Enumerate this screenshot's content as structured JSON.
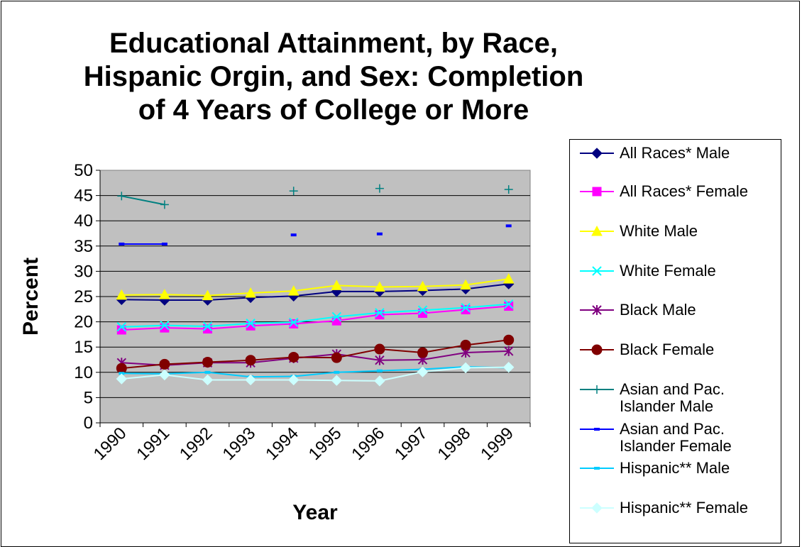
{
  "chart_data": {
    "type": "line",
    "title": "Educational Attainment, by Race, Hispanic Orgin, and Sex: Completion of 4 Years of College or More",
    "xlabel": "Year",
    "ylabel": "Percent",
    "ylim": [
      0,
      50
    ],
    "yticks": [
      "0",
      "5",
      "10",
      "15",
      "20",
      "25",
      "30",
      "35",
      "40",
      "45",
      "50"
    ],
    "categories": [
      "1990",
      "1991",
      "1992",
      "1993",
      "1994",
      "1995",
      "1996",
      "1997",
      "1998",
      "1999"
    ],
    "plot_background": "#c0c0c0",
    "grid": "horizontal",
    "legend_position": "right",
    "series": [
      {
        "name": "All Races* Male",
        "color": "#000080",
        "marker": "diamond",
        "values": [
          24.4,
          24.3,
          24.3,
          24.8,
          25.1,
          26.0,
          26.0,
          26.2,
          26.5,
          27.5
        ]
      },
      {
        "name": "All Races* Female",
        "color": "#ff00ff",
        "marker": "square",
        "values": [
          18.4,
          18.8,
          18.6,
          19.2,
          19.6,
          20.2,
          21.4,
          21.7,
          22.4,
          23.1
        ]
      },
      {
        "name": "White Male",
        "color": "#ffff00",
        "marker": "triangle",
        "values": [
          25.3,
          25.4,
          25.2,
          25.7,
          26.1,
          27.2,
          26.9,
          27.0,
          27.3,
          28.5
        ]
      },
      {
        "name": "White Female",
        "color": "#00ffff",
        "marker": "x",
        "values": [
          19.0,
          19.3,
          19.1,
          19.7,
          19.9,
          21.0,
          21.8,
          22.3,
          22.8,
          23.5
        ]
      },
      {
        "name": "Black Male",
        "color": "#800080",
        "marker": "asterisk",
        "values": [
          11.9,
          11.4,
          11.9,
          11.9,
          12.8,
          13.6,
          12.4,
          12.5,
          13.9,
          14.2
        ]
      },
      {
        "name": "Black Female",
        "color": "#800000",
        "marker": "circle",
        "values": [
          10.8,
          11.6,
          12.0,
          12.4,
          13.0,
          12.9,
          14.6,
          13.9,
          15.4,
          16.4
        ]
      },
      {
        "name": "Asian and Pac. Islander Male",
        "color": "#008080",
        "marker": "plus",
        "values": [
          44.9,
          43.2,
          null,
          null,
          45.9,
          null,
          46.4,
          null,
          null,
          46.2
        ]
      },
      {
        "name": "Asian and Pac. Islander Female",
        "color": "#0000ff",
        "marker": "dash",
        "values": [
          35.4,
          35.4,
          null,
          null,
          37.2,
          null,
          37.4,
          null,
          null,
          39.0
        ]
      },
      {
        "name": "Hispanic** Male",
        "color": "#00ccff",
        "marker": "dash",
        "values": [
          9.8,
          9.7,
          10.0,
          9.1,
          9.2,
          10.0,
          10.3,
          10.6,
          11.1,
          10.9
        ]
      },
      {
        "name": "Hispanic** Female",
        "color": "#ccffff",
        "marker": "diamond",
        "values": [
          8.7,
          9.5,
          8.5,
          8.5,
          8.5,
          8.4,
          8.3,
          10.1,
          10.9,
          11.0
        ]
      }
    ]
  }
}
